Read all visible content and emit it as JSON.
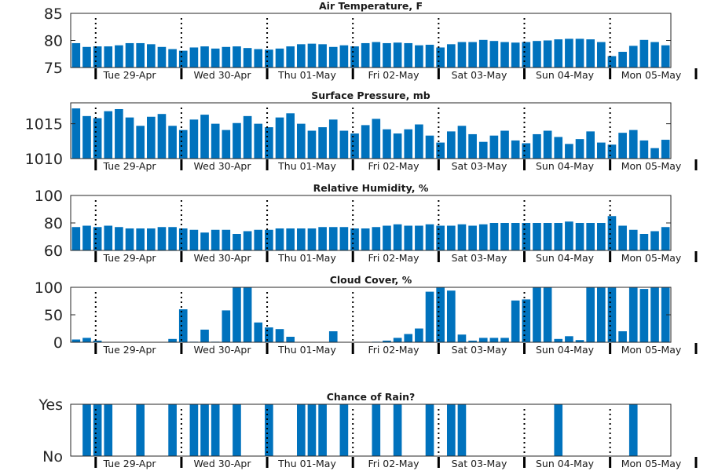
{
  "colors": {
    "bar": "#0072bd",
    "axis": "#262626",
    "background": "#ffffff"
  },
  "days": [
    "Tue 29-Apr",
    "Wed 30-Apr",
    "Thu 01-May",
    "Fri 02-May",
    "Sat 03-May",
    "Sun 04-May",
    "Mon 05-May"
  ],
  "chart_data": [
    {
      "type": "bar",
      "title": "Air Temperature, F",
      "ylim": [
        75,
        85
      ],
      "yticks": [
        75,
        80,
        85
      ],
      "ytick_labels": [
        "75",
        "80",
        "85"
      ],
      "values": [
        79.5,
        78.8,
        78.9,
        78.9,
        79.1,
        79.5,
        79.5,
        79.3,
        78.8,
        78.4,
        78.1,
        78.7,
        78.9,
        78.5,
        78.8,
        78.9,
        78.6,
        78.4,
        78.3,
        78.5,
        78.9,
        79.3,
        79.4,
        79.3,
        78.8,
        79.1,
        78.9,
        79.5,
        79.7,
        79.5,
        79.6,
        79.5,
        79.1,
        79.2,
        78.7,
        79.3,
        79.7,
        79.7,
        80.1,
        79.9,
        79.7,
        79.6,
        79.7,
        79.9,
        80.0,
        80.2,
        80.3,
        80.3,
        80.2,
        79.7,
        77.1,
        77.9,
        79.0,
        80.1,
        79.7,
        79.1
      ]
    },
    {
      "type": "bar",
      "title": "Surface Pressure, mb",
      "ylim": [
        1010,
        1018
      ],
      "yticks": [
        1010,
        1015
      ],
      "ytick_labels": [
        "1010",
        "1015"
      ],
      "values": [
        1017.2,
        1016.1,
        1015.8,
        1016.8,
        1017.1,
        1015.9,
        1014.7,
        1016.0,
        1016.4,
        1014.7,
        1014.1,
        1015.6,
        1016.3,
        1015.0,
        1014.1,
        1015.1,
        1016.1,
        1015.0,
        1014.5,
        1015.9,
        1016.5,
        1015.0,
        1014.0,
        1014.5,
        1015.6,
        1014.0,
        1013.6,
        1014.8,
        1015.7,
        1014.2,
        1013.6,
        1014.2,
        1014.9,
        1013.3,
        1012.3,
        1013.9,
        1014.7,
        1013.5,
        1012.4,
        1013.3,
        1014.0,
        1012.6,
        1012.2,
        1013.5,
        1014.0,
        1013.1,
        1012.1,
        1012.8,
        1013.9,
        1012.3,
        1012.0,
        1013.7,
        1014.1,
        1012.6,
        1011.5,
        1012.7
      ]
    },
    {
      "type": "bar",
      "title": "Relative Humidity, %",
      "ylim": [
        60,
        100
      ],
      "yticks": [
        60,
        80,
        100
      ],
      "ytick_labels": [
        "60",
        "80",
        "100"
      ],
      "values": [
        77,
        78,
        77,
        78,
        77,
        76,
        76,
        76,
        77,
        77,
        76,
        75,
        73,
        75,
        75,
        72,
        74,
        75,
        75,
        76,
        76,
        76,
        76,
        77,
        77,
        77,
        76,
        76,
        77,
        78,
        79,
        78,
        78,
        79,
        78,
        78,
        79,
        78,
        79,
        80,
        80,
        80,
        80,
        80,
        80,
        80,
        81,
        80,
        80,
        80,
        85,
        78,
        75,
        72,
        74,
        77
      ]
    },
    {
      "type": "bar",
      "title": "Cloud Cover, %",
      "ylim": [
        0,
        100
      ],
      "yticks": [
        0,
        50,
        100
      ],
      "ytick_labels": [
        "0",
        "50",
        "100"
      ],
      "values": [
        5,
        8,
        3,
        0,
        0,
        0,
        0,
        0,
        0,
        6,
        60,
        1,
        23,
        1,
        58,
        100,
        100,
        36,
        27,
        24,
        10,
        0,
        0,
        0,
        20,
        0,
        0,
        0,
        1,
        3,
        8,
        15,
        25,
        92,
        100,
        94,
        14,
        3,
        8,
        8,
        8,
        76,
        78,
        100,
        100,
        6,
        11,
        4,
        100,
        100,
        100,
        20,
        100,
        97,
        100,
        100
      ]
    },
    {
      "type": "bar",
      "title": "Chance of Rain?",
      "ylim": [
        0,
        1
      ],
      "yticks": [
        0,
        1
      ],
      "ytick_labels": [
        "No",
        "Yes"
      ],
      "values": [
        0,
        1,
        1,
        1,
        0,
        0,
        1,
        0,
        0,
        1,
        0,
        1,
        1,
        1,
        0,
        1,
        0,
        0,
        1,
        0,
        0,
        1,
        1,
        1,
        0,
        1,
        0,
        0,
        1,
        0,
        1,
        0,
        0,
        1,
        0,
        1,
        1,
        0,
        0,
        0,
        0,
        0,
        0,
        0,
        0,
        1,
        0,
        0,
        0,
        0,
        0,
        0,
        1,
        0,
        0,
        0
      ]
    }
  ]
}
